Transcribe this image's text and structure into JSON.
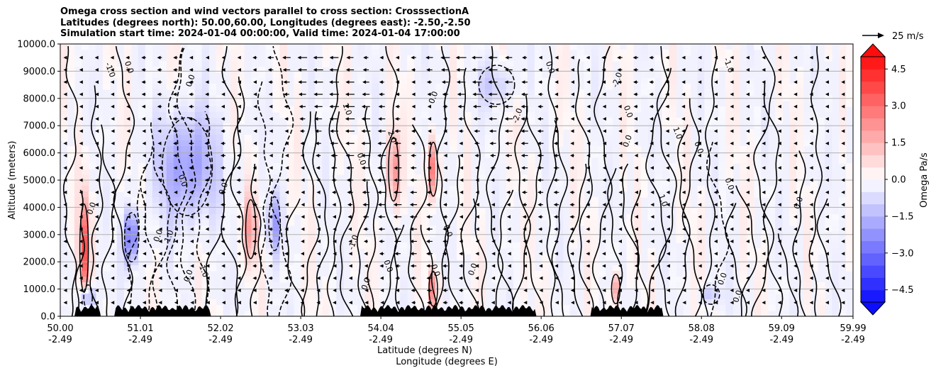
{
  "chart_data": {
    "type": "heatmap",
    "title_lines": [
      "Omega cross section and wind vectors parallel to cross section: CrosssectionA",
      "Latitudes (degrees north): 50.00,60.00, Longitudes (degrees east): -2.50,-2.50",
      "Simulation start time: 2024-01-04 00:00:00, Valid time: 2024-01-04 17:00:00"
    ],
    "ylabel": "Altitude (meters)",
    "xlabel_lat": "Latitude (degrees N)",
    "xlabel_lon": "Longitude (degrees E)",
    "ylim": [
      0,
      10000
    ],
    "xlim": [
      50.0,
      59.99
    ],
    "yticks": [
      "0.0",
      "1000.0",
      "2000.0",
      "3000.0",
      "4000.0",
      "5000.0",
      "6000.0",
      "7000.0",
      "8000.0",
      "9000.0",
      "10000.0"
    ],
    "xticks": [
      {
        "lat": "50.00",
        "lon": "-2.49",
        "v": 50.0
      },
      {
        "lat": "51.01",
        "lon": "-2.49",
        "v": 51.01
      },
      {
        "lat": "52.02",
        "lon": "-2.49",
        "v": 52.02
      },
      {
        "lat": "53.03",
        "lon": "-2.49",
        "v": 53.03
      },
      {
        "lat": "54.04",
        "lon": "-2.49",
        "v": 54.04
      },
      {
        "lat": "55.05",
        "lon": "-2.49",
        "v": 55.05
      },
      {
        "lat": "56.06",
        "lon": "-2.49",
        "v": 56.06
      },
      {
        "lat": "57.07",
        "lon": "-2.49",
        "v": 57.07
      },
      {
        "lat": "58.08",
        "lon": "-2.49",
        "v": 58.08
      },
      {
        "lat": "59.09",
        "lon": "-2.49",
        "v": 59.09
      },
      {
        "lat": "59.99",
        "lon": "-2.49",
        "v": 59.99
      }
    ],
    "colorbar": {
      "label": "Omega Pa/s",
      "range": [
        -5.0,
        5.0
      ],
      "ticks": [
        "4.5",
        "3.0",
        "1.5",
        "0.0",
        "−1.5",
        "−3.0",
        "−4.5"
      ],
      "tick_values": [
        4.5,
        3.0,
        1.5,
        0.0,
        -1.5,
        -3.0,
        -4.5
      ]
    },
    "quiver_key": "25 m/s",
    "contour_labels": [
      "0.0",
      "0.0",
      "0.0",
      "-1.0",
      "-2.0",
      "-1.0",
      "-1.0",
      "-2.0",
      "-1.0",
      "2.0",
      "1.0",
      "1.0",
      "0.0",
      "0.0",
      "1.0",
      "0.0",
      "0.0",
      "0.0",
      "0.0",
      "0.0",
      "0.0",
      "0.0",
      "0.0",
      "0.0",
      "0.0",
      "0.0",
      "1.0",
      "0.0",
      "0.0",
      "0.0",
      "0.0",
      "0.0",
      "0.0"
    ],
    "features": [
      {
        "lat": 50.3,
        "alt": 2500,
        "omega": 3.5,
        "w": 0.06,
        "h": 1800
      },
      {
        "lat": 50.35,
        "alt": 700,
        "omega": -4.5,
        "w": 0.05,
        "h": 500
      },
      {
        "lat": 51.6,
        "alt": 5500,
        "omega": -2.2,
        "w": 0.35,
        "h": 2000
      },
      {
        "lat": 50.9,
        "alt": 2900,
        "omega": -3.0,
        "w": 0.1,
        "h": 1000
      },
      {
        "lat": 52.4,
        "alt": 3200,
        "omega": 2.2,
        "w": 0.07,
        "h": 1200
      },
      {
        "lat": 52.7,
        "alt": 3400,
        "omega": -1.8,
        "w": 0.08,
        "h": 1100
      },
      {
        "lat": 54.2,
        "alt": 5400,
        "omega": 2.8,
        "w": 0.07,
        "h": 1300
      },
      {
        "lat": 54.7,
        "alt": 5400,
        "omega": 3.2,
        "w": 0.06,
        "h": 1100
      },
      {
        "lat": 54.7,
        "alt": 1000,
        "omega": 2.5,
        "w": 0.05,
        "h": 700
      },
      {
        "lat": 57.0,
        "alt": 1000,
        "omega": 2.0,
        "w": 0.05,
        "h": 600
      },
      {
        "lat": 55.5,
        "alt": 8500,
        "omega": -1.0,
        "w": 0.25,
        "h": 800
      },
      {
        "lat": 58.2,
        "alt": 800,
        "omega": -1.2,
        "w": 0.12,
        "h": 400
      }
    ]
  }
}
